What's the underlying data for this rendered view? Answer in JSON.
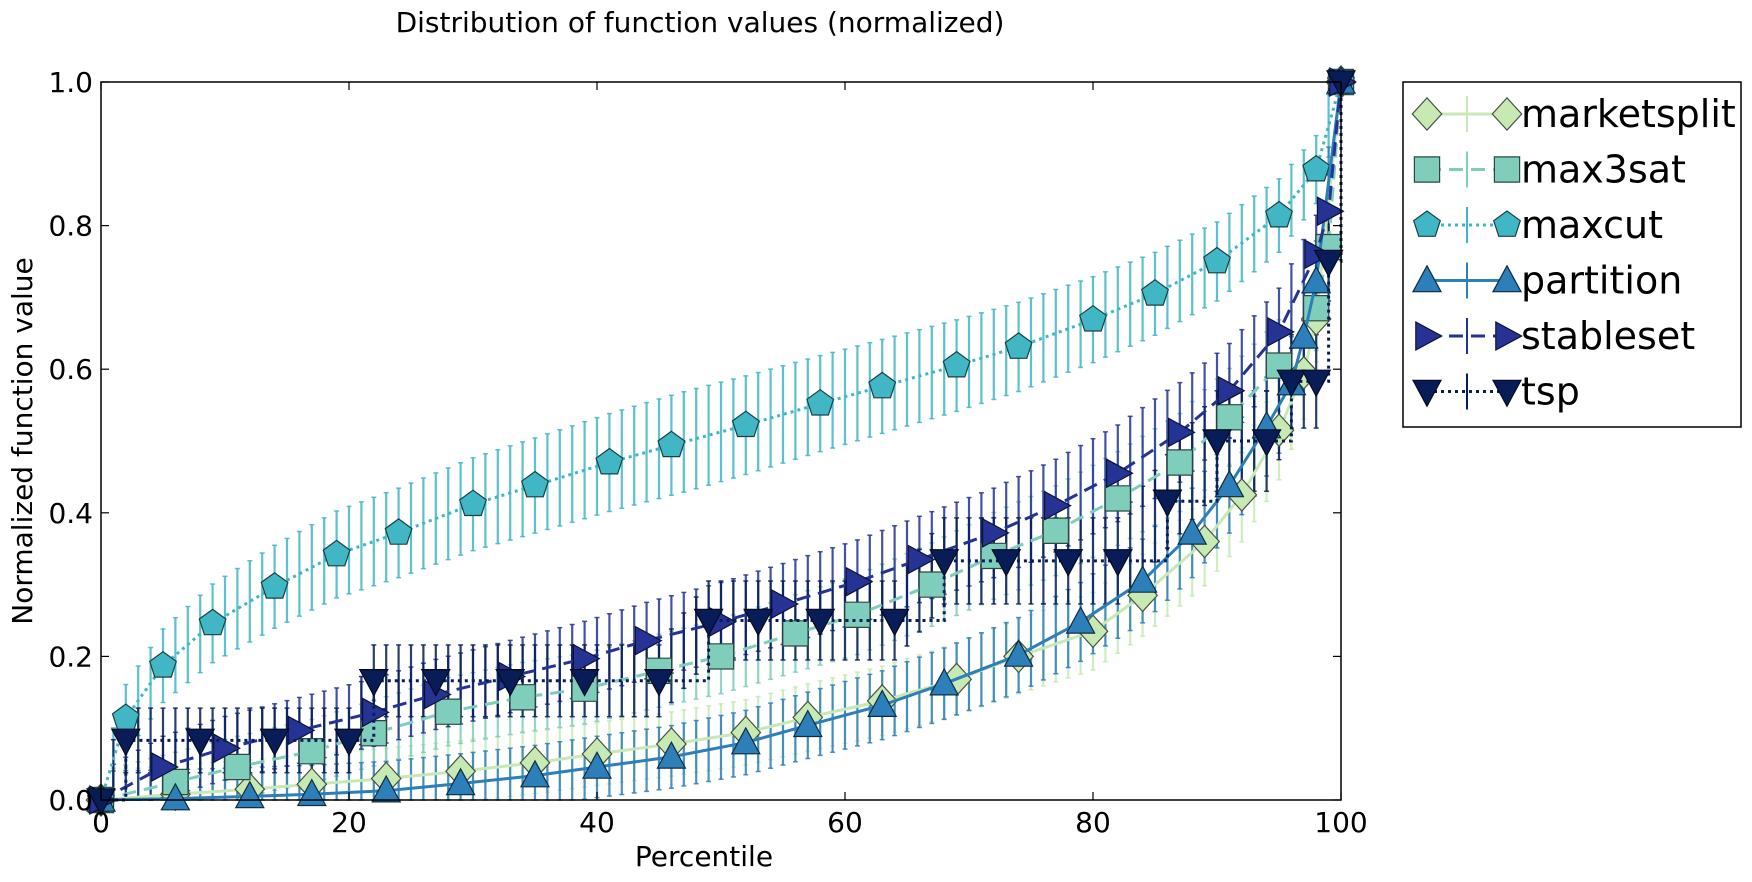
{
  "chart_data": {
    "type": "line",
    "title": "Distribution of function values (normalized)",
    "xlabel": "Percentile",
    "ylabel": "Normalized function value",
    "xlim": [
      0,
      100
    ],
    "ylim": [
      0,
      1.0
    ],
    "xticks": [
      0,
      20,
      40,
      60,
      80,
      100
    ],
    "yticks": [
      0.0,
      0.2,
      0.4,
      0.6,
      0.8,
      1.0
    ],
    "xtick_labels": [
      "0",
      "20",
      "40",
      "60",
      "80",
      "100"
    ],
    "ytick_labels": [
      "0.0",
      "0.2",
      "0.4",
      "0.6",
      "0.8",
      "1.0"
    ],
    "grid": false,
    "legend_position": "outside-right",
    "series": [
      {
        "name": "marketsplit",
        "color": "#c7e9b4",
        "line_style": "solid",
        "marker": "diamond",
        "errorbars": true,
        "x": [
          0,
          6,
          12,
          17,
          23,
          29,
          35,
          40,
          46,
          52,
          57,
          63,
          69,
          74,
          80,
          84,
          89,
          92,
          95,
          97,
          98,
          100
        ],
        "y": [
          0.0,
          0.008,
          0.015,
          0.022,
          0.03,
          0.04,
          0.052,
          0.064,
          0.078,
          0.094,
          0.115,
          0.138,
          0.168,
          0.2,
          0.235,
          0.285,
          0.36,
          0.425,
          0.515,
          0.595,
          0.67,
          1.0
        ]
      },
      {
        "name": "max3sat",
        "color": "#7fcdbb",
        "line_style": "dashed",
        "marker": "square",
        "errorbars": true,
        "x": [
          0,
          6,
          11,
          17,
          22,
          28,
          34,
          39,
          45,
          50,
          56,
          61,
          67,
          72,
          77,
          82,
          87,
          91,
          95,
          98,
          99,
          100
        ],
        "y": [
          0.0,
          0.025,
          0.046,
          0.068,
          0.093,
          0.123,
          0.143,
          0.155,
          0.18,
          0.2,
          0.232,
          0.258,
          0.3,
          0.34,
          0.375,
          0.42,
          0.47,
          0.533,
          0.605,
          0.685,
          0.77,
          1.0
        ]
      },
      {
        "name": "maxcut",
        "color": "#41b6c4",
        "line_style": "dotted",
        "marker": "pentagon",
        "errorbars": true,
        "x": [
          0,
          2,
          5,
          9,
          14,
          19,
          24,
          30,
          35,
          41,
          46,
          52,
          58,
          63,
          69,
          74,
          80,
          85,
          90,
          95,
          98,
          100
        ],
        "y": [
          0.0,
          0.114,
          0.187,
          0.246,
          0.297,
          0.342,
          0.372,
          0.412,
          0.438,
          0.47,
          0.494,
          0.522,
          0.552,
          0.576,
          0.605,
          0.631,
          0.669,
          0.705,
          0.75,
          0.814,
          0.878,
          1.0
        ]
      },
      {
        "name": "partition",
        "color": "#2c7fb8",
        "line_style": "solid",
        "marker": "triangle-up",
        "errorbars": true,
        "x": [
          0,
          6,
          12,
          17,
          23,
          29,
          35,
          40,
          46,
          52,
          57,
          63,
          68,
          74,
          79,
          84,
          88,
          91,
          94,
          96,
          97,
          98,
          100
        ],
        "y": [
          0.0,
          0.002,
          0.005,
          0.008,
          0.013,
          0.023,
          0.034,
          0.046,
          0.06,
          0.08,
          0.104,
          0.132,
          0.162,
          0.202,
          0.248,
          0.305,
          0.372,
          0.438,
          0.52,
          0.58,
          0.645,
          0.722,
          1.0
        ]
      },
      {
        "name": "stableset",
        "color": "#253494",
        "line_style": "dashed",
        "marker": "triangle-right",
        "errorbars": true,
        "x": [
          0,
          5,
          10,
          16,
          22,
          27,
          33,
          39,
          44,
          50,
          55,
          61,
          66,
          72,
          77,
          82,
          87,
          91,
          95,
          98,
          99,
          100
        ],
        "y": [
          0.0,
          0.046,
          0.072,
          0.097,
          0.122,
          0.147,
          0.172,
          0.197,
          0.222,
          0.248,
          0.273,
          0.304,
          0.335,
          0.372,
          0.41,
          0.455,
          0.512,
          0.57,
          0.652,
          0.76,
          0.82,
          1.0
        ]
      },
      {
        "name": "tsp",
        "color": "#081d58",
        "line_style": "dotted",
        "marker": "triangle-down",
        "errorbars": true,
        "x": [
          0,
          2,
          8,
          14,
          20,
          22,
          27,
          33,
          39,
          45,
          49,
          53,
          58,
          64,
          68,
          73,
          78,
          82,
          86,
          90,
          94,
          96,
          98,
          99,
          100
        ],
        "y": [
          0.0,
          0.083,
          0.083,
          0.083,
          0.083,
          0.166,
          0.166,
          0.166,
          0.166,
          0.166,
          0.25,
          0.25,
          0.25,
          0.25,
          0.333,
          0.333,
          0.333,
          0.333,
          0.416,
          0.5,
          0.5,
          0.583,
          0.583,
          0.75,
          1.0
        ]
      }
    ]
  }
}
